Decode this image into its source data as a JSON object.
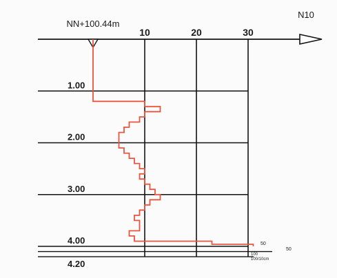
{
  "chart_data": {
    "type": "line",
    "title": "",
    "xlabel": "N10",
    "ylabel": "",
    "reference_label": "NN+100.44m",
    "x_ticks": [
      "10",
      "20",
      "30"
    ],
    "xlim": [
      0,
      30
    ],
    "y_ticks": [
      "1.00",
      "2.00",
      "3.00",
      "4.00",
      "4.20"
    ],
    "ylim": [
      0,
      4.2
    ],
    "end_annotations": [
      "50",
      "50"
    ],
    "stop_label_value": "100",
    "stop_label_unit": "100/10cm",
    "series": [
      {
        "color": "#e8553f",
        "points": [
          [
            0,
            0
          ],
          [
            0,
            1.2
          ],
          [
            10,
            1.2
          ],
          [
            10,
            1.3
          ],
          [
            13,
            1.3
          ],
          [
            13,
            1.4
          ],
          [
            10,
            1.4
          ],
          [
            10,
            1.5
          ],
          [
            9,
            1.5
          ],
          [
            9,
            1.6
          ],
          [
            7,
            1.6
          ],
          [
            7,
            1.7
          ],
          [
            6,
            1.7
          ],
          [
            6,
            1.8
          ],
          [
            5,
            1.8
          ],
          [
            5,
            1.9
          ],
          [
            5,
            1.9
          ],
          [
            5,
            2.0
          ],
          [
            5,
            2.0
          ],
          [
            5,
            2.1
          ],
          [
            6,
            2.1
          ],
          [
            6,
            2.2
          ],
          [
            7,
            2.2
          ],
          [
            7,
            2.3
          ],
          [
            8,
            2.3
          ],
          [
            8,
            2.4
          ],
          [
            9,
            2.4
          ],
          [
            9,
            2.5
          ],
          [
            10,
            2.5
          ],
          [
            10,
            2.6
          ],
          [
            9,
            2.6
          ],
          [
            9,
            2.7
          ],
          [
            10,
            2.7
          ],
          [
            10,
            2.8
          ],
          [
            11,
            2.8
          ],
          [
            11,
            2.9
          ],
          [
            12,
            2.9
          ],
          [
            12,
            3.0
          ],
          [
            13,
            3.0
          ],
          [
            13,
            3.1
          ],
          [
            11,
            3.1
          ],
          [
            11,
            3.2
          ],
          [
            10,
            3.2
          ],
          [
            10,
            3.3
          ],
          [
            9,
            3.3
          ],
          [
            9,
            3.4
          ],
          [
            8,
            3.4
          ],
          [
            8,
            3.5
          ],
          [
            9,
            3.5
          ],
          [
            9,
            3.6
          ],
          [
            9,
            3.6
          ],
          [
            9,
            3.7
          ],
          [
            7,
            3.7
          ],
          [
            7,
            3.8
          ],
          [
            8,
            3.8
          ],
          [
            8,
            3.9
          ],
          [
            23,
            3.9
          ],
          [
            23,
            3.96
          ],
          [
            31,
            3.96
          ],
          [
            31,
            4.0
          ]
        ]
      }
    ],
    "grid": true
  }
}
